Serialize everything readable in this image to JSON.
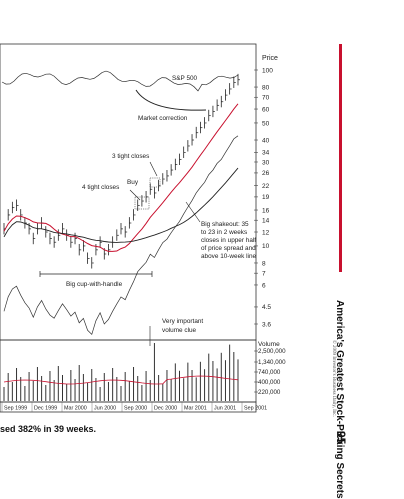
{
  "page": {
    "caption": "sed 382% in 39 weeks.",
    "side_title": "America's Greatest Stock-Picking Secrets",
    "copyright": "© 2009 Investor's Business Daily, Inc.",
    "page_number": "95"
  },
  "colors": {
    "price": "#333333",
    "avg50": "#c8102e",
    "avg200": "#222222",
    "accent": "#c8102e"
  },
  "chart_data": {
    "type": "line",
    "price_axis": {
      "title": "Price",
      "ticks": [
        {
          "label": "100",
          "v": 100
        },
        {
          "label": "80",
          "v": 80
        },
        {
          "label": "70",
          "v": 70
        },
        {
          "label": "60",
          "v": 60
        },
        {
          "label": "50",
          "v": 50
        },
        {
          "label": "40",
          "v": 40
        },
        {
          "label": "34",
          "v": 34
        },
        {
          "label": "30",
          "v": 30
        },
        {
          "label": "26",
          "v": 26
        },
        {
          "label": "22",
          "v": 22
        },
        {
          "label": "19",
          "v": 19
        },
        {
          "label": "16",
          "v": 16
        },
        {
          "label": "14",
          "v": 14
        },
        {
          "label": "12",
          "v": 12
        },
        {
          "label": "10",
          "v": 10
        },
        {
          "label": "8",
          "v": 8
        },
        {
          "label": "7",
          "v": 7
        },
        {
          "label": "6",
          "v": 6
        },
        {
          "label": "4.5",
          "v": 4.5
        },
        {
          "label": "3.6",
          "v": 3.6
        }
      ]
    },
    "volume_axis": {
      "title": "Volume",
      "ticks": [
        {
          "label": "2,500,000",
          "v": 2500000
        },
        {
          "label": "1,340,000",
          "v": 1340000
        },
        {
          "label": "740,000",
          "v": 740000
        },
        {
          "label": "400,000",
          "v": 400000
        },
        {
          "label": "220,000",
          "v": 220000
        }
      ]
    },
    "x_labels": [
      "Sep 1999",
      "Dec 1999",
      "Mar 2000",
      "Jun 2000",
      "Sep 2000",
      "Dec 2000",
      "Mar 2001",
      "Jun 2001",
      "Sep 2001"
    ],
    "weekly_close": [
      12.5,
      15,
      16.5,
      17,
      15,
      13.5,
      12.5,
      11,
      12.5,
      13.5,
      12,
      11,
      10.5,
      11.5,
      12.5,
      11.5,
      10.5,
      11,
      9.5,
      10,
      8.5,
      8,
      9.5,
      10.5,
      9,
      9.5,
      10.5,
      11.5,
      12.5,
      12,
      13.5,
      15,
      17,
      18,
      19,
      21,
      20,
      22,
      24,
      25,
      27,
      29,
      31,
      34,
      37,
      40,
      44,
      47,
      50,
      55,
      58,
      63,
      66,
      72,
      78,
      85,
      88
    ],
    "series": [
      {
        "name": "S&P 500"
      }
    ],
    "annotations": [
      {
        "text": "S&P 500"
      },
      {
        "text": "Market correction"
      },
      {
        "text": "3 tight closes"
      },
      {
        "text": "Buy"
      },
      {
        "text": "4 tight closes"
      },
      {
        "text": "Big shakeout: 35"
      },
      {
        "text": "to 23 in 2 weeks"
      },
      {
        "text": "closes in upper half"
      },
      {
        "text": "of price spread and"
      },
      {
        "text": "above 10-week line"
      },
      {
        "text": "Big cup-with-handle"
      },
      {
        "text": "Very important"
      },
      {
        "text": "volume clue"
      }
    ]
  }
}
